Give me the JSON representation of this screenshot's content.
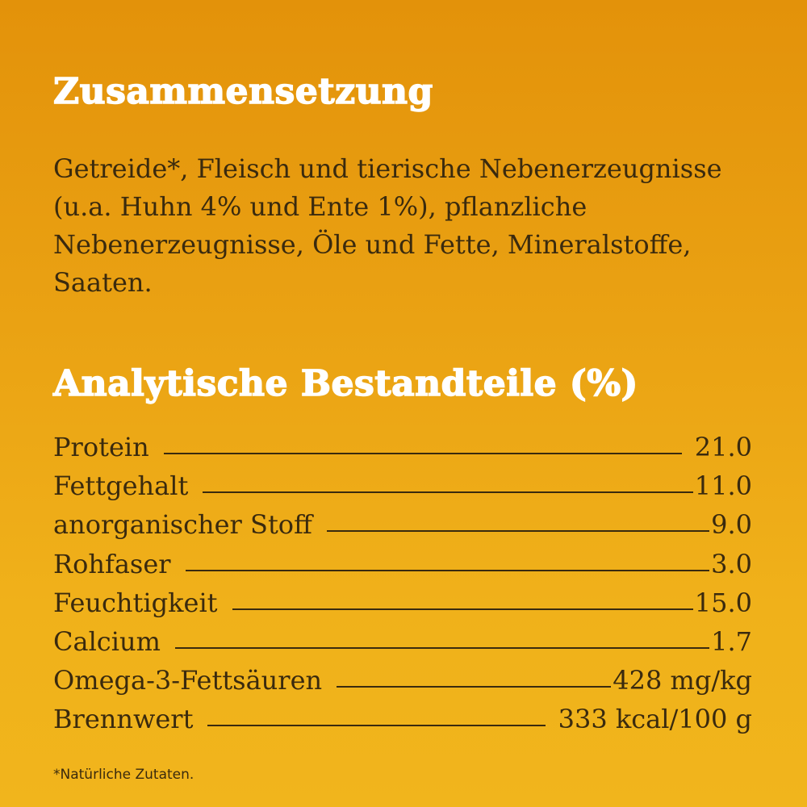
{
  "composition": {
    "heading": "Zusammensetzung",
    "text": "Getreide*, Fleisch und tierische Nebenerzeugnisse (u.a. Huhn 4% und Ente 1%), pflanzliche Nebenerzeugnisse, Öle und Fette, Mineralstoffe, Saaten."
  },
  "analytics": {
    "heading": "Analytische Bestandteile  (%)",
    "rows": [
      {
        "label": "Protein",
        "value": "21.0"
      },
      {
        "label": "Fettgehalt",
        "value": "11.0"
      },
      {
        "label": "anorganischer Stoff",
        "value": "9.0"
      },
      {
        "label": "Rohfaser",
        "value": "3.0"
      },
      {
        "label": "Feuchtigkeit",
        "value": "15.0"
      },
      {
        "label": "Calcium",
        "value": "1.7"
      },
      {
        "label": "Omega-3-Fettsäuren",
        "value": "428 mg/kg"
      },
      {
        "label": "Brennwert",
        "value": "333 kcal/100 g"
      }
    ]
  },
  "footnote": "*Natürliche Zutaten.",
  "colors": {
    "background_top": "#E3920A",
    "background_bottom": "#F1B51C",
    "heading": "#FFFFFF",
    "body_text": "#3A2A0E"
  }
}
